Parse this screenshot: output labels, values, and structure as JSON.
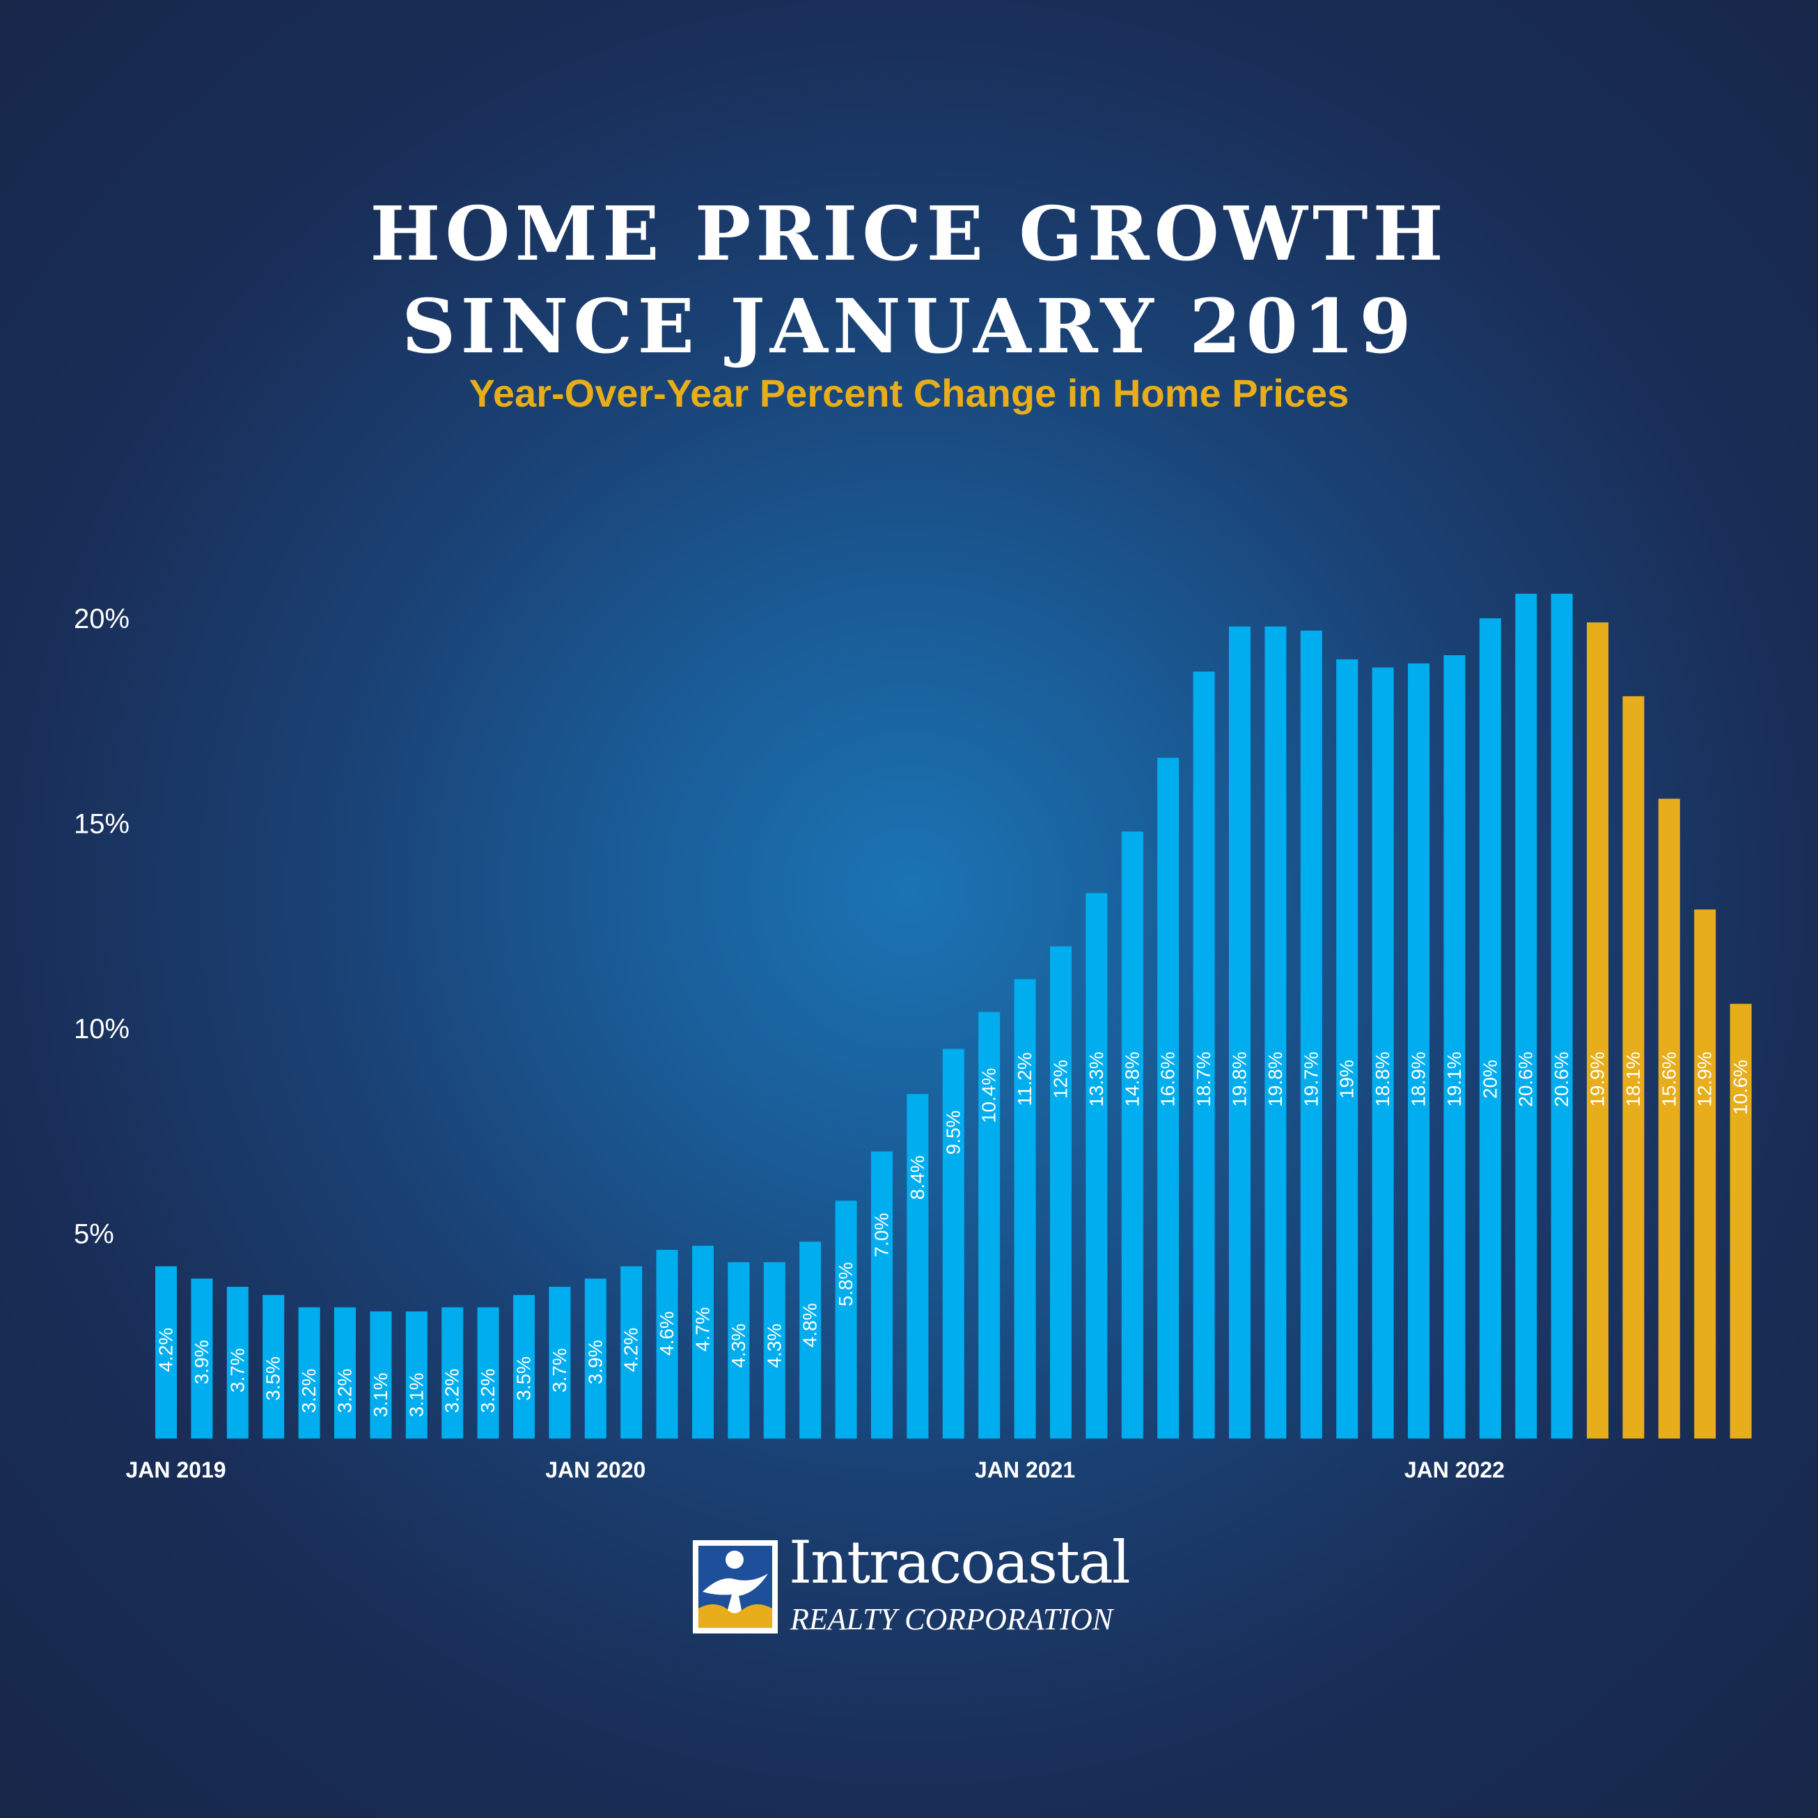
{
  "header": {
    "title_line1": "HOME PRICE GROWTH",
    "title_line2": "SINCE JANUARY 2019",
    "subtitle": "Year-Over-Year Percent Change in Home Prices"
  },
  "colors": {
    "bar_actual": "#00aeef",
    "bar_projected": "#e7ad1a",
    "subtitle": "#e7ad1a",
    "text": "#ffffff"
  },
  "chart_data": {
    "type": "bar",
    "title": "HOME PRICE GROWTH SINCE JANUARY 2019",
    "subtitle": "Year-Over-Year Percent Change in Home Prices",
    "categories": [
      "2019-01",
      "2019-02",
      "2019-03",
      "2019-04",
      "2019-05",
      "2019-06",
      "2019-07",
      "2019-08",
      "2019-09",
      "2019-10",
      "2019-11",
      "2019-12",
      "2020-01",
      "2020-02",
      "2020-03",
      "2020-04",
      "2020-05",
      "2020-06",
      "2020-07",
      "2020-08",
      "2020-09",
      "2020-10",
      "2020-11",
      "2020-12",
      "2021-01",
      "2021-02",
      "2021-03",
      "2021-04",
      "2021-05",
      "2021-06",
      "2021-07",
      "2021-08",
      "2021-09",
      "2021-10",
      "2021-11",
      "2021-12",
      "2022-01",
      "2022-02",
      "2022-03",
      "2022-04",
      "2022-05",
      "2022-06",
      "2022-07",
      "2022-08",
      "2022-09"
    ],
    "values": [
      4.2,
      3.9,
      3.7,
      3.5,
      3.2,
      3.2,
      3.1,
      3.1,
      3.2,
      3.2,
      3.5,
      3.7,
      3.9,
      4.2,
      4.6,
      4.7,
      4.3,
      4.3,
      4.8,
      5.8,
      7.0,
      8.4,
      9.5,
      10.4,
      11.2,
      12,
      13.3,
      14.8,
      16.6,
      18.7,
      19.8,
      19.8,
      19.7,
      19,
      18.8,
      18.9,
      19.1,
      20,
      20.6,
      20.6,
      19.9,
      18.1,
      15.6,
      12.9,
      10.6
    ],
    "data_labels": [
      "4.2%",
      "3.9%",
      "3.7%",
      "3.5%",
      "3.2%",
      "3.2%",
      "3.1%",
      "3.1%",
      "3.2%",
      "3.2%",
      "3.5%",
      "3.7%",
      "3.9%",
      "4.2%",
      "4.6%",
      "4.7%",
      "4.3%",
      "4.3%",
      "4.8%",
      "5.8%",
      "7.0%",
      "8.4%",
      "9.5%",
      "10.4%",
      "11.2%",
      "12%",
      "13.3%",
      "14.8%",
      "16.6%",
      "18.7%",
      "19.8%",
      "19.8%",
      "19.7%",
      "19%",
      "18.8%",
      "18.9%",
      "19.1%",
      "20%",
      "20.6%",
      "20.6%",
      "19.9%",
      "18.1%",
      "15.6%",
      "12.9%",
      "10.6%"
    ],
    "highlighted_from_index": 40,
    "y_ticks": [
      {
        "value": 5,
        "label": "5%"
      },
      {
        "value": 10,
        "label": "10%"
      },
      {
        "value": 15,
        "label": "15%"
      },
      {
        "value": 20,
        "label": "20%"
      }
    ],
    "x_ticks": [
      {
        "index": 0,
        "label": "JAN 2019"
      },
      {
        "index": 12,
        "label": "JAN 2020"
      },
      {
        "index": 24,
        "label": "JAN 2021"
      },
      {
        "index": 36,
        "label": "JAN 2022"
      }
    ],
    "ylim": [
      0,
      20.6
    ],
    "grid": false,
    "legend": "none"
  },
  "logo": {
    "name": "Intracoastal",
    "tagline": "REALTY CORPORATION"
  }
}
